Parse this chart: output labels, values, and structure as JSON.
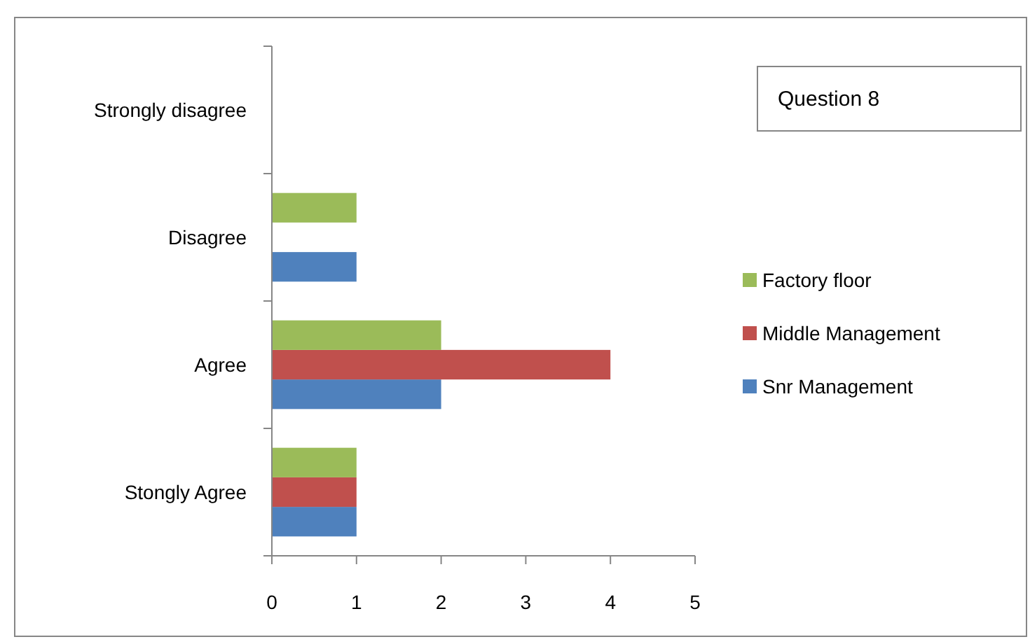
{
  "chart_data": {
    "type": "bar",
    "orientation": "horizontal",
    "title": "Question 8",
    "categories": [
      "Strongly disagree",
      "Disagree",
      "Agree",
      "Stongly Agree"
    ],
    "series": [
      {
        "name": "Snr Management",
        "color": "#4f81bd",
        "values": [
          null,
          1,
          2,
          1
        ]
      },
      {
        "name": "Middle Management",
        "color": "#c0504d",
        "values": [
          null,
          null,
          4,
          1
        ]
      },
      {
        "name": "Factory floor",
        "color": "#9bbb59",
        "values": [
          null,
          1,
          2,
          1
        ]
      }
    ],
    "xlim": [
      0,
      5
    ],
    "xticks": [
      0,
      1,
      2,
      3,
      4,
      5
    ],
    "legend": "right"
  }
}
